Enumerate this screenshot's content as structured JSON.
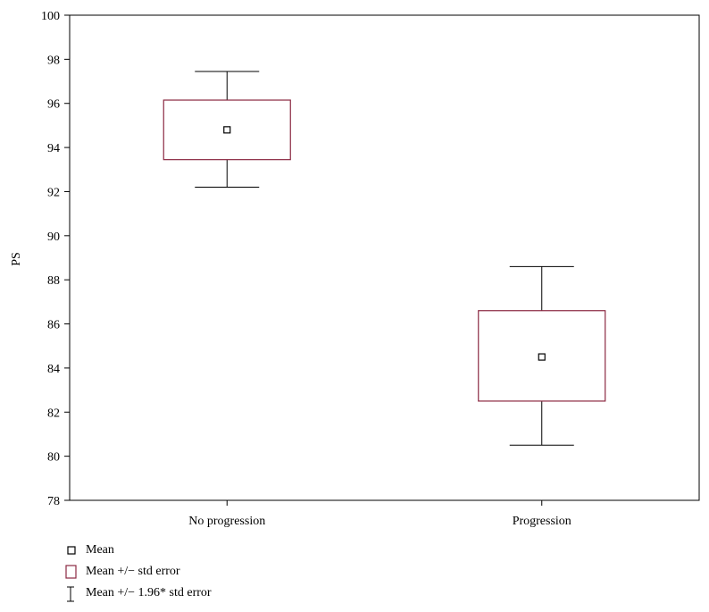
{
  "chart_data": {
    "type": "box",
    "ylabel": "PS",
    "xlabel": "",
    "ylim": [
      78,
      100
    ],
    "yticks": [
      78,
      80,
      82,
      84,
      86,
      88,
      90,
      92,
      94,
      96,
      98,
      100
    ],
    "categories": [
      "No progression",
      "Progression"
    ],
    "groups": [
      {
        "category": "No progression",
        "mean": 94.8,
        "se_low": 93.45,
        "se_high": 96.15,
        "ci_low": 92.2,
        "ci_high": 97.45
      },
      {
        "category": "Progression",
        "mean": 84.5,
        "se_low": 82.5,
        "se_high": 86.6,
        "ci_low": 80.5,
        "ci_high": 88.6
      }
    ],
    "legend": [
      {
        "key": "mean",
        "label": "Mean"
      },
      {
        "key": "se",
        "label": "Mean +/− std error"
      },
      {
        "key": "ci",
        "label": "Mean +/− 1.96* std error"
      }
    ],
    "colors": {
      "box": "#8b2942",
      "line": "#000000"
    },
    "grid": false
  }
}
